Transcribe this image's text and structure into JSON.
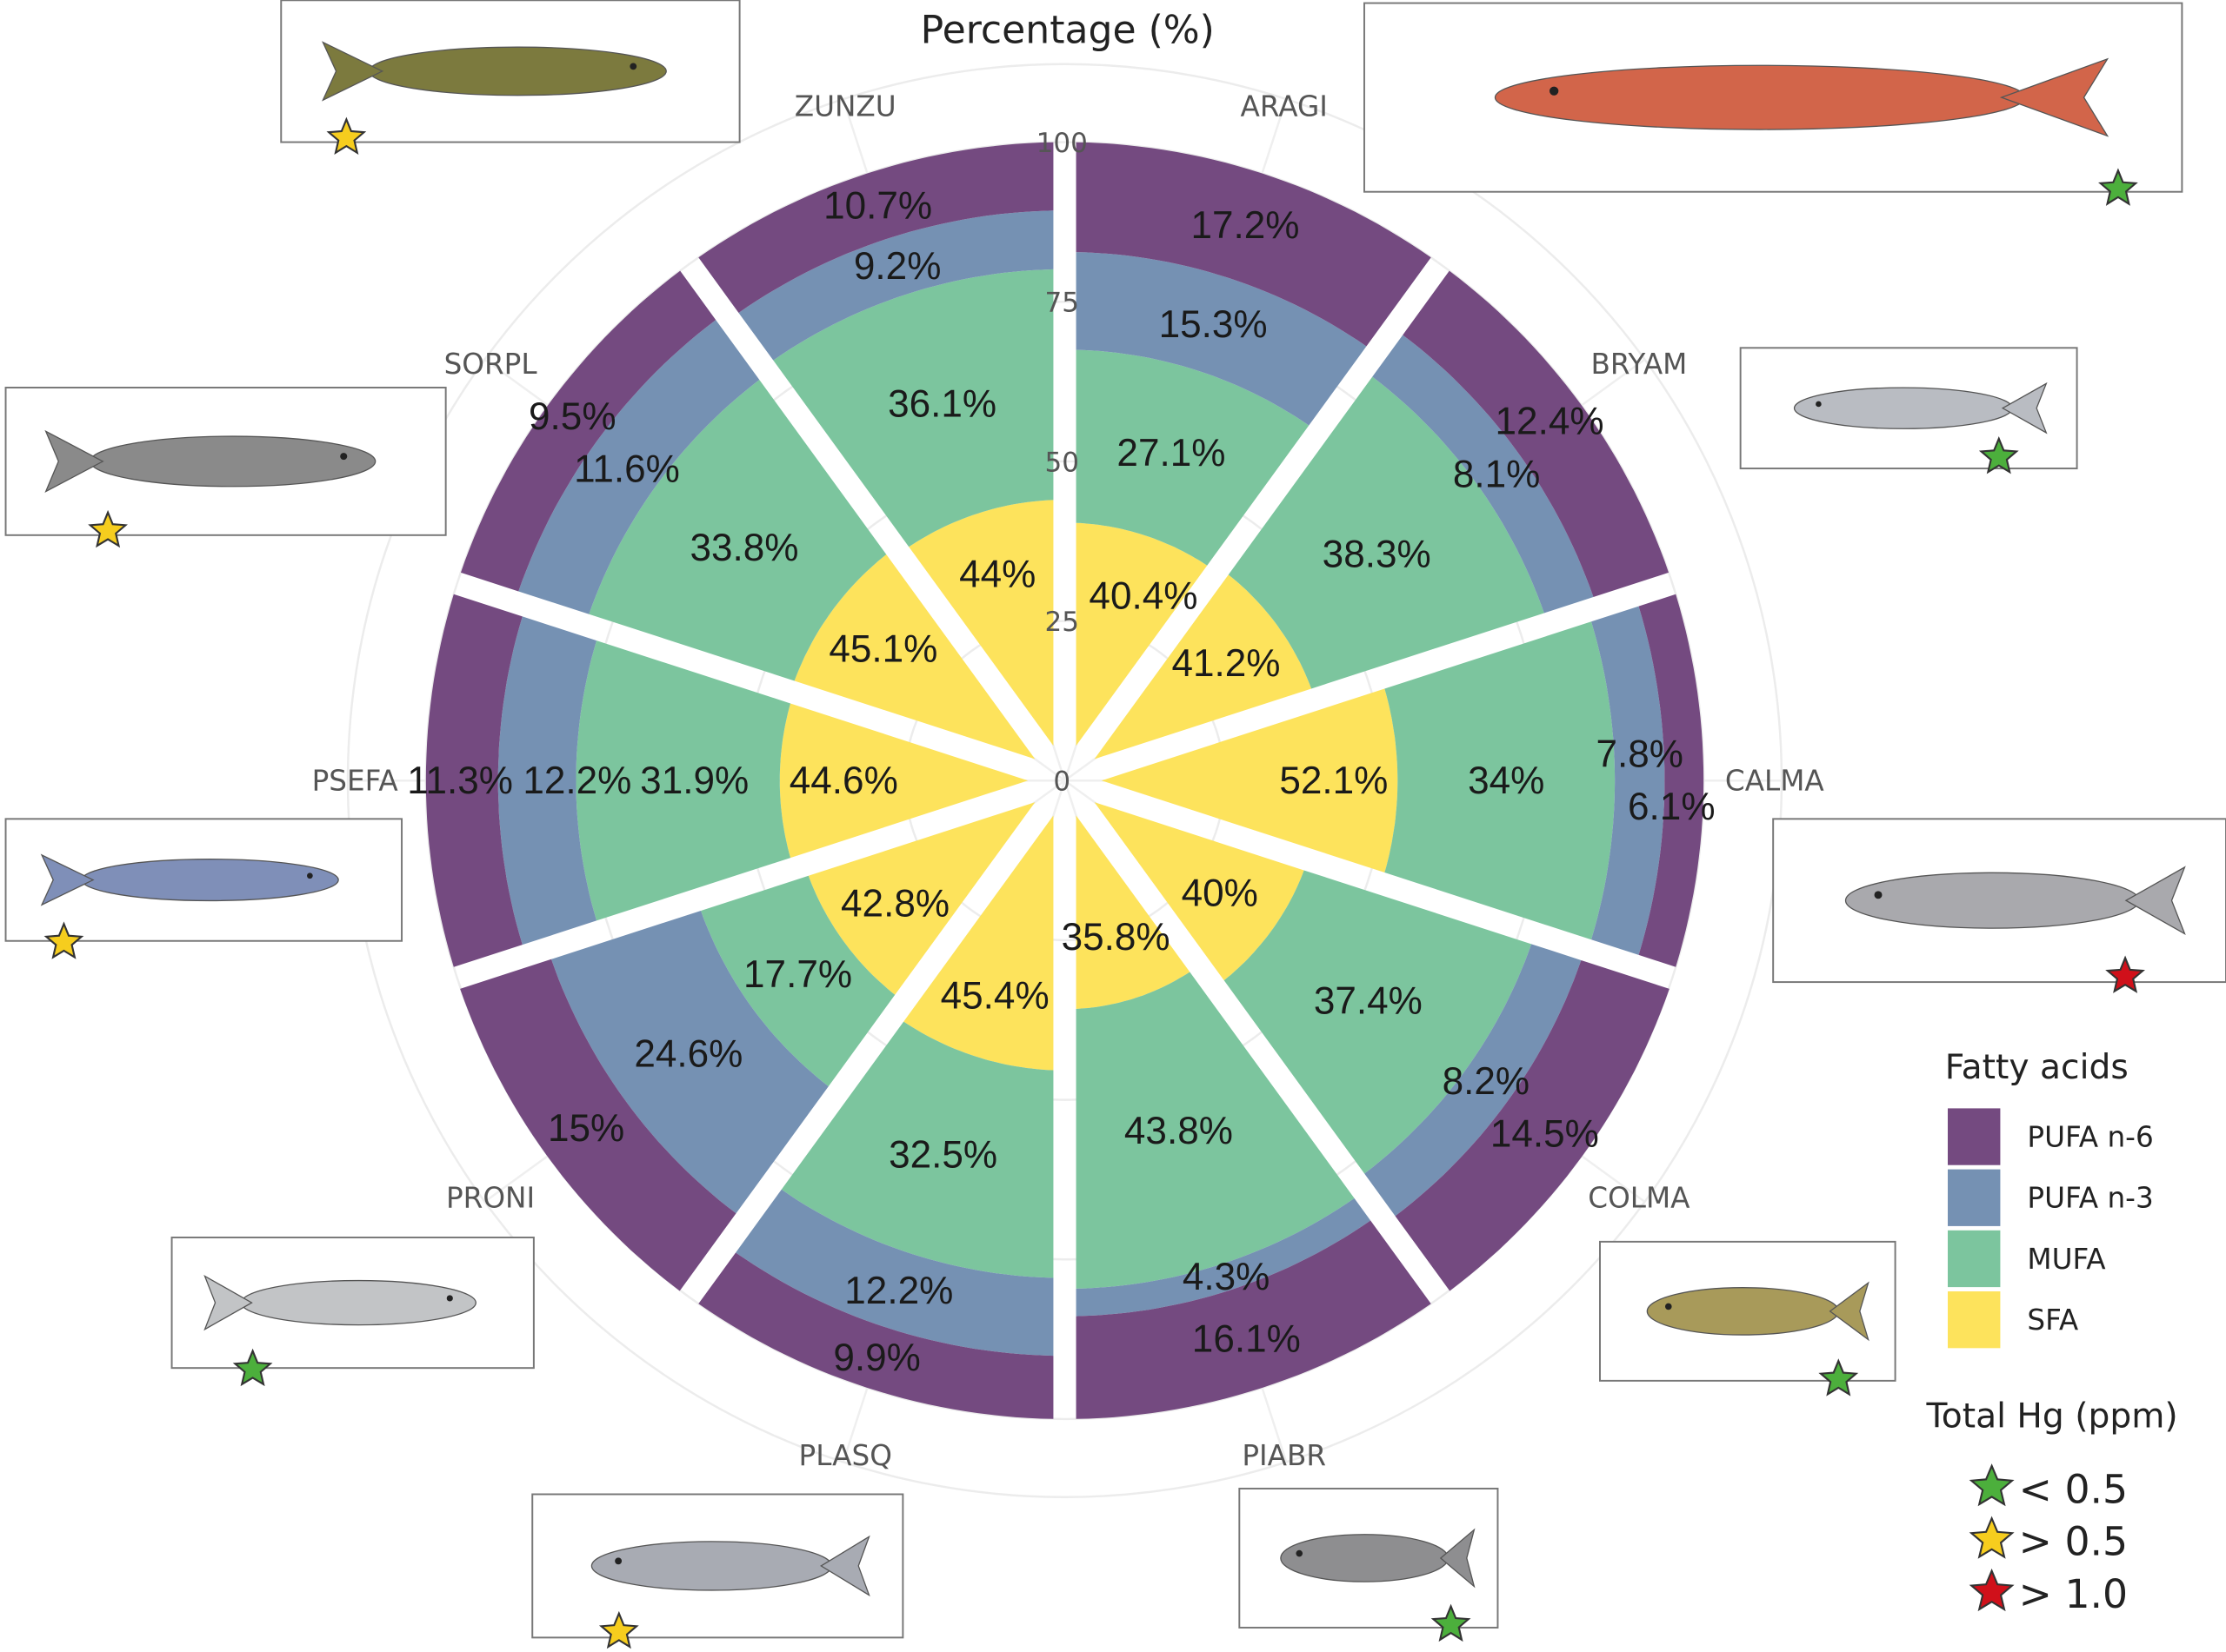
{
  "chart_data": {
    "type": "bar",
    "subtype": "polar-stacked",
    "title": "Percentage (%)",
    "radial_axis": {
      "range": [
        0,
        100
      ],
      "ticks": [
        "0",
        "25",
        "50",
        "75",
        "100"
      ]
    },
    "categories": [
      "ARAGI",
      "BRYAM",
      "CALMA",
      "COLMA",
      "PIABR",
      "PLASQ",
      "PRONI",
      "PSEFA",
      "SORPL",
      "ZUNZU"
    ],
    "series": [
      {
        "name": "SFA",
        "color": "#fde35c",
        "values": [
          40.4,
          41.2,
          52.1,
          40,
          35.8,
          45.4,
          42.8,
          44.6,
          45.1,
          44
        ],
        "labels": [
          "40.4%",
          "41.2%",
          "52.1%",
          "40%",
          "35.8%",
          "45.4%",
          "42.8%",
          "44.6%",
          "45.1%",
          "44%"
        ]
      },
      {
        "name": "MUFA",
        "color": "#7cc59e",
        "values": [
          27.1,
          38.3,
          34,
          37.4,
          43.8,
          32.5,
          17.7,
          31.9,
          33.8,
          36.1
        ],
        "labels": [
          "27.1%",
          "38.3%",
          "34%",
          "37.4%",
          "43.8%",
          "32.5%",
          "17.7%",
          "31.9%",
          "33.8%",
          "36.1%"
        ]
      },
      {
        "name": "PUFA n-3",
        "color": "#7591b3",
        "values": [
          15.3,
          8.1,
          7.8,
          8.2,
          4.3,
          12.2,
          24.6,
          12.2,
          11.6,
          9.2
        ],
        "labels": [
          "15.3%",
          "8.1%",
          "7.8%",
          "8.2%",
          "4.3%",
          "12.2%",
          "24.6%",
          "12.2%",
          "11.6%",
          "9.2%"
        ]
      },
      {
        "name": "PUFA n-6",
        "color": "#744a80",
        "values": [
          17.2,
          12.4,
          6.1,
          14.5,
          16.1,
          9.9,
          15,
          11.3,
          9.5,
          10.7
        ],
        "labels": [
          "17.2%",
          "12.4%",
          "6.1%",
          "14.5%",
          "16.1%",
          "9.9%",
          "15%",
          "11.3%",
          "9.5%",
          "10.7%"
        ]
      }
    ],
    "legend": {
      "title": "Fatty acids",
      "position": "right",
      "entries": [
        "PUFA n-6",
        "PUFA n-3",
        "MUFA",
        "SFA"
      ]
    },
    "hg_legend": {
      "title": "Total Hg (ppm)",
      "entries": [
        {
          "label": "< 0.5",
          "level": "low",
          "color": "#4caf3c"
        },
        {
          "label": "> 0.5",
          "level": "mid",
          "color": "#f6cd1e"
        },
        {
          "label": "> 1.0",
          "level": "high",
          "color": "#d0101a"
        }
      ]
    },
    "hg_by_species": {
      "ARAGI": "low",
      "BRYAM": "low",
      "CALMA": "high",
      "COLMA": "low",
      "PIABR": "low",
      "PLASQ": "mid",
      "PRONI": "low",
      "PSEFA": "mid",
      "SORPL": "mid",
      "ZUNZU": "mid"
    },
    "fish_colors": {
      "ARAGI": "#d2654a",
      "BRYAM": "#b9bcc2",
      "CALMA": "#a9a9ad",
      "COLMA": "#a89a5a",
      "PIABR": "#8e8e90",
      "PLASQ": "#a8abb3",
      "PRONI": "#c2c4c6",
      "PSEFA": "#7f8fb8",
      "SORPL": "#8a8a8a",
      "ZUNZU": "#7c7a3e"
    }
  }
}
